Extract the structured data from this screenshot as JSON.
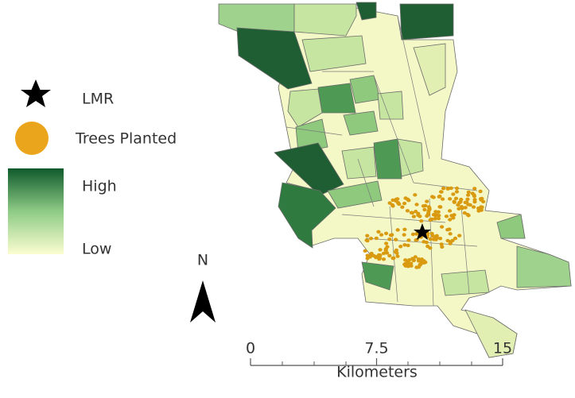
{
  "legend": {
    "items": [
      "LMR",
      "Trees Planted"
    ],
    "gradient": {
      "high": "High",
      "low": "Low"
    }
  },
  "north_arrow": {
    "label": "N"
  },
  "scale_bar": {
    "ticks": [
      0,
      7.5,
      15
    ],
    "unit": "Kilometers"
  }
}
